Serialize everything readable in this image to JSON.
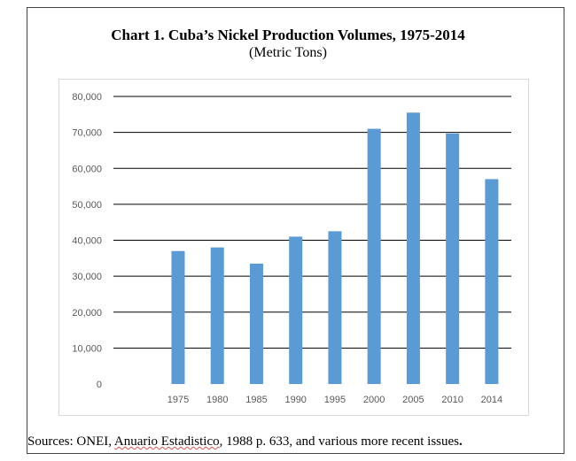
{
  "chart_data": {
    "type": "bar",
    "title": "Chart 1. Cuba’s Nickel Production Volumes, 1975-2014",
    "subtitle": "(Metric Tons)",
    "categories": [
      "1975",
      "1980",
      "1985",
      "1990",
      "1995",
      "2000",
      "2005",
      "2010",
      "2014"
    ],
    "values": [
      37000,
      38000,
      33500,
      41000,
      42500,
      71000,
      75500,
      69700,
      57000
    ],
    "ylim": [
      0,
      80000
    ],
    "yticks": [
      "0",
      "10,000",
      "20,000",
      "30,000",
      "40,000",
      "50,000",
      "60,000",
      "70,000",
      "80,000"
    ],
    "grid": true,
    "bar_color": "#5b9bd5"
  },
  "source": {
    "prefix": "Sources: ONEI, ",
    "flagged": "Anuario Estadistico",
    "suffix": ", 1988 p. 633, and various more recent issues",
    "end": "."
  }
}
